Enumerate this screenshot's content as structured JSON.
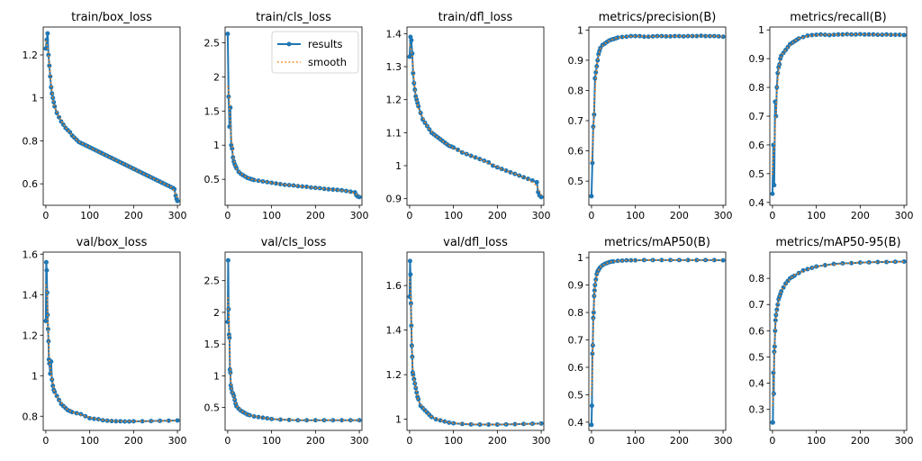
{
  "chart_data": [
    {
      "type": "line",
      "title": "train/box_loss",
      "xlim": [
        -6,
        306
      ],
      "ylim": [
        0.5,
        1.33
      ],
      "xticks": [
        0,
        100,
        200,
        300
      ],
      "yticks": [
        0.6,
        0.8,
        1.0,
        1.2
      ],
      "x": [
        0,
        2,
        4,
        6,
        8,
        10,
        12,
        14,
        16,
        18,
        20,
        25,
        30,
        35,
        40,
        45,
        50,
        55,
        60,
        65,
        70,
        75,
        80,
        85,
        90,
        95,
        100,
        105,
        110,
        115,
        120,
        125,
        130,
        135,
        140,
        145,
        150,
        155,
        160,
        165,
        170,
        175,
        180,
        185,
        190,
        195,
        200,
        205,
        210,
        215,
        220,
        225,
        230,
        235,
        240,
        245,
        250,
        255,
        260,
        265,
        270,
        275,
        280,
        285,
        290,
        293,
        296,
        298,
        300
      ],
      "y": [
        1.23,
        1.27,
        1.3,
        1.2,
        1.15,
        1.1,
        1.05,
        1.02,
        1.0,
        0.98,
        0.96,
        0.93,
        0.91,
        0.89,
        0.875,
        0.86,
        0.85,
        0.84,
        0.825,
        0.815,
        0.805,
        0.795,
        0.79,
        0.785,
        0.78,
        0.775,
        0.77,
        0.765,
        0.76,
        0.755,
        0.75,
        0.745,
        0.74,
        0.735,
        0.73,
        0.725,
        0.72,
        0.715,
        0.71,
        0.705,
        0.7,
        0.695,
        0.69,
        0.685,
        0.68,
        0.675,
        0.67,
        0.665,
        0.66,
        0.655,
        0.65,
        0.645,
        0.64,
        0.635,
        0.63,
        0.625,
        0.62,
        0.615,
        0.61,
        0.605,
        0.6,
        0.595,
        0.59,
        0.585,
        0.58,
        0.575,
        0.545,
        0.53,
        0.52
      ]
    },
    {
      "type": "line",
      "title": "train/cls_loss",
      "xlim": [
        -6,
        306
      ],
      "ylim": [
        0.12,
        2.73
      ],
      "xticks": [
        0,
        100,
        200,
        300
      ],
      "yticks": [
        0.5,
        1.0,
        1.5,
        2.0,
        2.5
      ],
      "x": [
        0,
        2,
        4,
        6,
        8,
        10,
        12,
        14,
        16,
        18,
        20,
        25,
        30,
        35,
        40,
        45,
        50,
        55,
        60,
        70,
        80,
        90,
        100,
        110,
        120,
        130,
        140,
        150,
        160,
        170,
        180,
        190,
        200,
        210,
        220,
        230,
        240,
        250,
        260,
        270,
        280,
        290,
        293,
        296,
        300
      ],
      "y": [
        2.63,
        1.71,
        1.27,
        1.55,
        1.0,
        0.95,
        0.82,
        0.76,
        0.72,
        0.69,
        0.66,
        0.61,
        0.58,
        0.56,
        0.54,
        0.52,
        0.51,
        0.5,
        0.49,
        0.48,
        0.47,
        0.46,
        0.45,
        0.44,
        0.43,
        0.42,
        0.415,
        0.41,
        0.4,
        0.395,
        0.39,
        0.38,
        0.375,
        0.37,
        0.36,
        0.355,
        0.35,
        0.345,
        0.34,
        0.33,
        0.32,
        0.31,
        0.27,
        0.25,
        0.24
      ]
    },
    {
      "type": "line",
      "title": "train/dfl_loss",
      "xlim": [
        -6,
        306
      ],
      "ylim": [
        0.88,
        1.42
      ],
      "xticks": [
        0,
        100,
        200,
        300
      ],
      "yticks": [
        0.9,
        1.0,
        1.1,
        1.2,
        1.3,
        1.4
      ],
      "x": [
        0,
        2,
        4,
        6,
        8,
        10,
        12,
        14,
        16,
        18,
        20,
        25,
        30,
        35,
        40,
        45,
        50,
        55,
        60,
        65,
        70,
        75,
        80,
        85,
        90,
        95,
        100,
        110,
        120,
        130,
        140,
        150,
        160,
        170,
        180,
        190,
        200,
        210,
        220,
        230,
        240,
        250,
        260,
        270,
        280,
        290,
        293,
        296,
        300
      ],
      "y": [
        1.33,
        1.39,
        1.38,
        1.34,
        1.28,
        1.25,
        1.23,
        1.21,
        1.2,
        1.19,
        1.18,
        1.16,
        1.14,
        1.13,
        1.12,
        1.11,
        1.1,
        1.095,
        1.09,
        1.085,
        1.08,
        1.075,
        1.07,
        1.065,
        1.06,
        1.058,
        1.055,
        1.048,
        1.04,
        1.035,
        1.03,
        1.025,
        1.02,
        1.015,
        1.01,
        1.0,
        0.995,
        0.99,
        0.985,
        0.98,
        0.975,
        0.97,
        0.965,
        0.96,
        0.955,
        0.95,
        0.92,
        0.91,
        0.905
      ]
    },
    {
      "type": "line",
      "title": "metrics/precision(B)",
      "xlim": [
        -6,
        306
      ],
      "ylim": [
        0.42,
        1.01
      ],
      "xticks": [
        0,
        100,
        200,
        300
      ],
      "yticks": [
        0.5,
        0.6,
        0.7,
        0.8,
        0.9,
        1.0
      ],
      "x": [
        0,
        2,
        4,
        6,
        8,
        10,
        12,
        14,
        16,
        18,
        20,
        25,
        30,
        35,
        40,
        45,
        50,
        55,
        60,
        70,
        80,
        90,
        100,
        110,
        120,
        130,
        140,
        150,
        160,
        170,
        180,
        190,
        200,
        210,
        220,
        230,
        240,
        250,
        260,
        270,
        280,
        290,
        300
      ],
      "y": [
        0.45,
        0.56,
        0.68,
        0.72,
        0.84,
        0.86,
        0.88,
        0.9,
        0.92,
        0.93,
        0.94,
        0.95,
        0.955,
        0.96,
        0.965,
        0.968,
        0.97,
        0.972,
        0.975,
        0.977,
        0.978,
        0.98,
        0.98,
        0.98,
        0.978,
        0.978,
        0.979,
        0.98,
        0.98,
        0.979,
        0.979,
        0.98,
        0.98,
        0.979,
        0.98,
        0.98,
        0.98,
        0.981,
        0.98,
        0.98,
        0.98,
        0.979,
        0.978
      ]
    },
    {
      "type": "line",
      "title": "metrics/recall(B)",
      "xlim": [
        -6,
        306
      ],
      "ylim": [
        0.39,
        1.01
      ],
      "xticks": [
        0,
        100,
        200,
        300
      ],
      "yticks": [
        0.4,
        0.5,
        0.6,
        0.7,
        0.8,
        0.9,
        1.0
      ],
      "x": [
        0,
        2,
        4,
        6,
        8,
        10,
        12,
        14,
        16,
        18,
        20,
        25,
        30,
        35,
        40,
        45,
        50,
        55,
        60,
        70,
        80,
        90,
        100,
        110,
        120,
        130,
        140,
        150,
        160,
        170,
        180,
        190,
        200,
        210,
        220,
        230,
        240,
        250,
        260,
        270,
        280,
        290,
        300
      ],
      "y": [
        0.43,
        0.6,
        0.46,
        0.75,
        0.7,
        0.8,
        0.85,
        0.87,
        0.88,
        0.9,
        0.91,
        0.92,
        0.93,
        0.94,
        0.95,
        0.955,
        0.96,
        0.965,
        0.97,
        0.975,
        0.98,
        0.982,
        0.983,
        0.984,
        0.983,
        0.982,
        0.983,
        0.984,
        0.984,
        0.985,
        0.984,
        0.984,
        0.985,
        0.984,
        0.984,
        0.984,
        0.983,
        0.983,
        0.984,
        0.983,
        0.983,
        0.983,
        0.982
      ]
    },
    {
      "type": "line",
      "title": "val/box_loss",
      "xlim": [
        -6,
        306
      ],
      "ylim": [
        0.73,
        1.61
      ],
      "xticks": [
        0,
        100,
        200,
        300
      ],
      "yticks": [
        0.8,
        1.0,
        1.2,
        1.4,
        1.6
      ],
      "x": [
        0,
        1,
        2,
        3,
        4,
        5,
        6,
        7,
        8,
        10,
        12,
        14,
        16,
        18,
        20,
        25,
        30,
        35,
        40,
        45,
        50,
        55,
        60,
        70,
        80,
        90,
        100,
        110,
        120,
        130,
        140,
        150,
        160,
        170,
        180,
        190,
        200,
        220,
        240,
        260,
        280,
        300
      ],
      "y": [
        1.27,
        1.56,
        1.52,
        1.41,
        1.3,
        1.23,
        1.17,
        1.08,
        1.06,
        1.01,
        1.07,
        0.98,
        0.95,
        0.93,
        0.92,
        0.9,
        0.88,
        0.86,
        0.85,
        0.84,
        0.83,
        0.825,
        0.82,
        0.815,
        0.81,
        0.8,
        0.79,
        0.787,
        0.785,
        0.78,
        0.778,
        0.776,
        0.775,
        0.775,
        0.774,
        0.774,
        0.775,
        0.775,
        0.776,
        0.777,
        0.778,
        0.779
      ]
    },
    {
      "type": "line",
      "title": "val/cls_loss",
      "xlim": [
        -6,
        306
      ],
      "ylim": [
        0.14,
        2.95
      ],
      "xticks": [
        0,
        100,
        200,
        300
      ],
      "yticks": [
        0.5,
        1.0,
        1.5,
        2.0,
        2.5
      ],
      "x": [
        0,
        1,
        2,
        3,
        4,
        5,
        6,
        7,
        8,
        10,
        12,
        14,
        16,
        18,
        20,
        25,
        30,
        35,
        40,
        45,
        50,
        60,
        70,
        80,
        90,
        100,
        120,
        140,
        160,
        180,
        200,
        220,
        240,
        260,
        280,
        300
      ],
      "y": [
        1.85,
        2.82,
        2.05,
        1.65,
        1.6,
        1.1,
        1.05,
        0.85,
        0.8,
        0.74,
        0.72,
        0.68,
        0.62,
        0.56,
        0.52,
        0.48,
        0.45,
        0.43,
        0.41,
        0.39,
        0.38,
        0.36,
        0.35,
        0.34,
        0.33,
        0.32,
        0.31,
        0.305,
        0.3,
        0.3,
        0.3,
        0.3,
        0.3,
        0.3,
        0.3,
        0.3
      ]
    },
    {
      "type": "line",
      "title": "val/dfl_loss",
      "xlim": [
        -6,
        306
      ],
      "ylim": [
        0.95,
        1.75
      ],
      "xticks": [
        0,
        100,
        200,
        300
      ],
      "yticks": [
        1.0,
        1.2,
        1.4,
        1.6
      ],
      "x": [
        0,
        1,
        2,
        3,
        4,
        5,
        6,
        7,
        8,
        10,
        12,
        14,
        16,
        18,
        20,
        25,
        30,
        35,
        40,
        45,
        50,
        60,
        70,
        80,
        90,
        100,
        120,
        140,
        160,
        180,
        200,
        220,
        240,
        260,
        280,
        300
      ],
      "y": [
        1.55,
        1.71,
        1.65,
        1.52,
        1.42,
        1.33,
        1.28,
        1.21,
        1.2,
        1.18,
        1.16,
        1.14,
        1.12,
        1.1,
        1.09,
        1.06,
        1.05,
        1.04,
        1.03,
        1.02,
        1.01,
        1.0,
        0.995,
        0.99,
        0.985,
        0.982,
        0.979,
        0.977,
        0.976,
        0.976,
        0.976,
        0.977,
        0.978,
        0.979,
        0.98,
        0.981
      ]
    },
    {
      "type": "line",
      "title": "metrics/mAP50(B)",
      "xlim": [
        -6,
        306
      ],
      "ylim": [
        0.37,
        1.02
      ],
      "xticks": [
        0,
        100,
        200,
        300
      ],
      "yticks": [
        0.4,
        0.5,
        0.6,
        0.7,
        0.8,
        0.9,
        1.0
      ],
      "x": [
        0,
        1,
        2,
        3,
        4,
        5,
        6,
        7,
        8,
        10,
        12,
        14,
        16,
        18,
        20,
        25,
        30,
        35,
        40,
        45,
        50,
        60,
        70,
        80,
        90,
        100,
        120,
        140,
        160,
        180,
        200,
        220,
        240,
        260,
        280,
        300
      ],
      "y": [
        0.39,
        0.46,
        0.65,
        0.68,
        0.78,
        0.8,
        0.86,
        0.88,
        0.9,
        0.92,
        0.94,
        0.95,
        0.955,
        0.96,
        0.965,
        0.972,
        0.977,
        0.98,
        0.983,
        0.985,
        0.986,
        0.988,
        0.989,
        0.99,
        0.99,
        0.99,
        0.991,
        0.991,
        0.991,
        0.991,
        0.991,
        0.991,
        0.991,
        0.991,
        0.991,
        0.99
      ]
    },
    {
      "type": "line",
      "title": "metrics/mAP50-95(B)",
      "xlim": [
        -6,
        306
      ],
      "ylim": [
        0.22,
        0.9
      ],
      "xticks": [
        0,
        100,
        200,
        300
      ],
      "yticks": [
        0.3,
        0.4,
        0.5,
        0.6,
        0.7,
        0.8
      ],
      "x": [
        0,
        1,
        2,
        3,
        4,
        5,
        6,
        7,
        8,
        10,
        12,
        14,
        16,
        18,
        20,
        25,
        30,
        35,
        40,
        45,
        50,
        60,
        70,
        80,
        90,
        100,
        120,
        140,
        160,
        180,
        200,
        220,
        240,
        260,
        280,
        300
      ],
      "y": [
        0.25,
        0.25,
        0.44,
        0.36,
        0.52,
        0.54,
        0.6,
        0.64,
        0.66,
        0.68,
        0.7,
        0.72,
        0.73,
        0.74,
        0.75,
        0.765,
        0.78,
        0.79,
        0.8,
        0.805,
        0.81,
        0.82,
        0.83,
        0.835,
        0.84,
        0.845,
        0.85,
        0.855,
        0.857,
        0.858,
        0.86,
        0.861,
        0.862,
        0.862,
        0.863,
        0.864
      ]
    }
  ],
  "legend": {
    "results": "results",
    "smooth": "smooth"
  }
}
